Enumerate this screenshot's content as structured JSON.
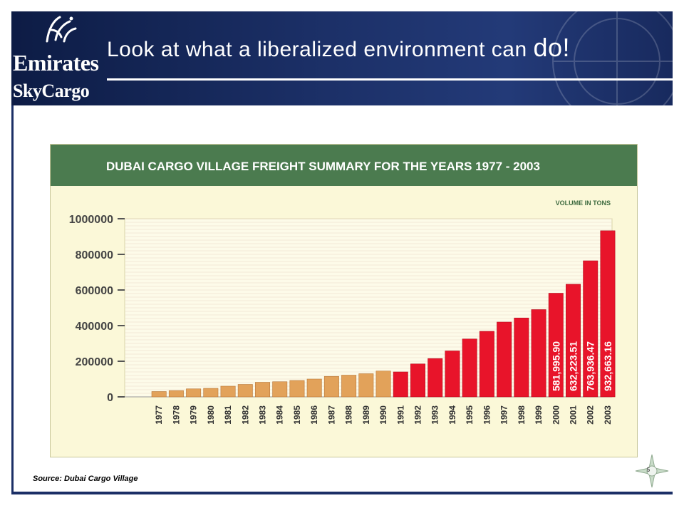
{
  "slide": {
    "title_main": "Look at what a liberalized environment can ",
    "title_emph": "do!",
    "logo_line1": "Emirates",
    "logo_line2": "SkyCargo",
    "source": "Source: Dubai Cargo Village",
    "page_number": "5",
    "colors": {
      "band": "#1b2f66",
      "chart_header": "#4b7b4f",
      "chart_bg": "#fbf8d8",
      "bar_early": "#e2a25a",
      "bar_late": "#e8142a"
    }
  },
  "chart_data": {
    "type": "bar",
    "title": "DUBAI CARGO VILLAGE FREIGHT SUMMARY FOR THE YEARS 1977 - 2003",
    "unit_label": "VOLUME IN TONS",
    "xlabel": "",
    "ylabel": "",
    "ylim": [
      0,
      1000000
    ],
    "yticks": [
      "1000000",
      "800000",
      "600000",
      "400000",
      "200000",
      "0"
    ],
    "grid": true,
    "categories": [
      "1977",
      "1978",
      "1979",
      "1980",
      "1981",
      "1982",
      "1983",
      "1984",
      "1985",
      "1986",
      "1987",
      "1988",
      "1989",
      "1990",
      "1991",
      "1992",
      "1993",
      "1994",
      "1995",
      "1996",
      "1997",
      "1998",
      "1999",
      "2000",
      "2001",
      "2002",
      "2003"
    ],
    "values": [
      30000,
      35000,
      45000,
      48000,
      60000,
      70000,
      82000,
      85000,
      92000,
      100000,
      115000,
      122000,
      130000,
      145000,
      140000,
      185000,
      215000,
      258000,
      325000,
      368000,
      420000,
      443000,
      490000,
      581995.9,
      632223.51,
      763936.47,
      932663.16
    ],
    "data_labels": {
      "2000": "581,995.90",
      "2001": "632,223.51",
      "2002": "763,936.47",
      "2003": "932,663.16"
    }
  }
}
